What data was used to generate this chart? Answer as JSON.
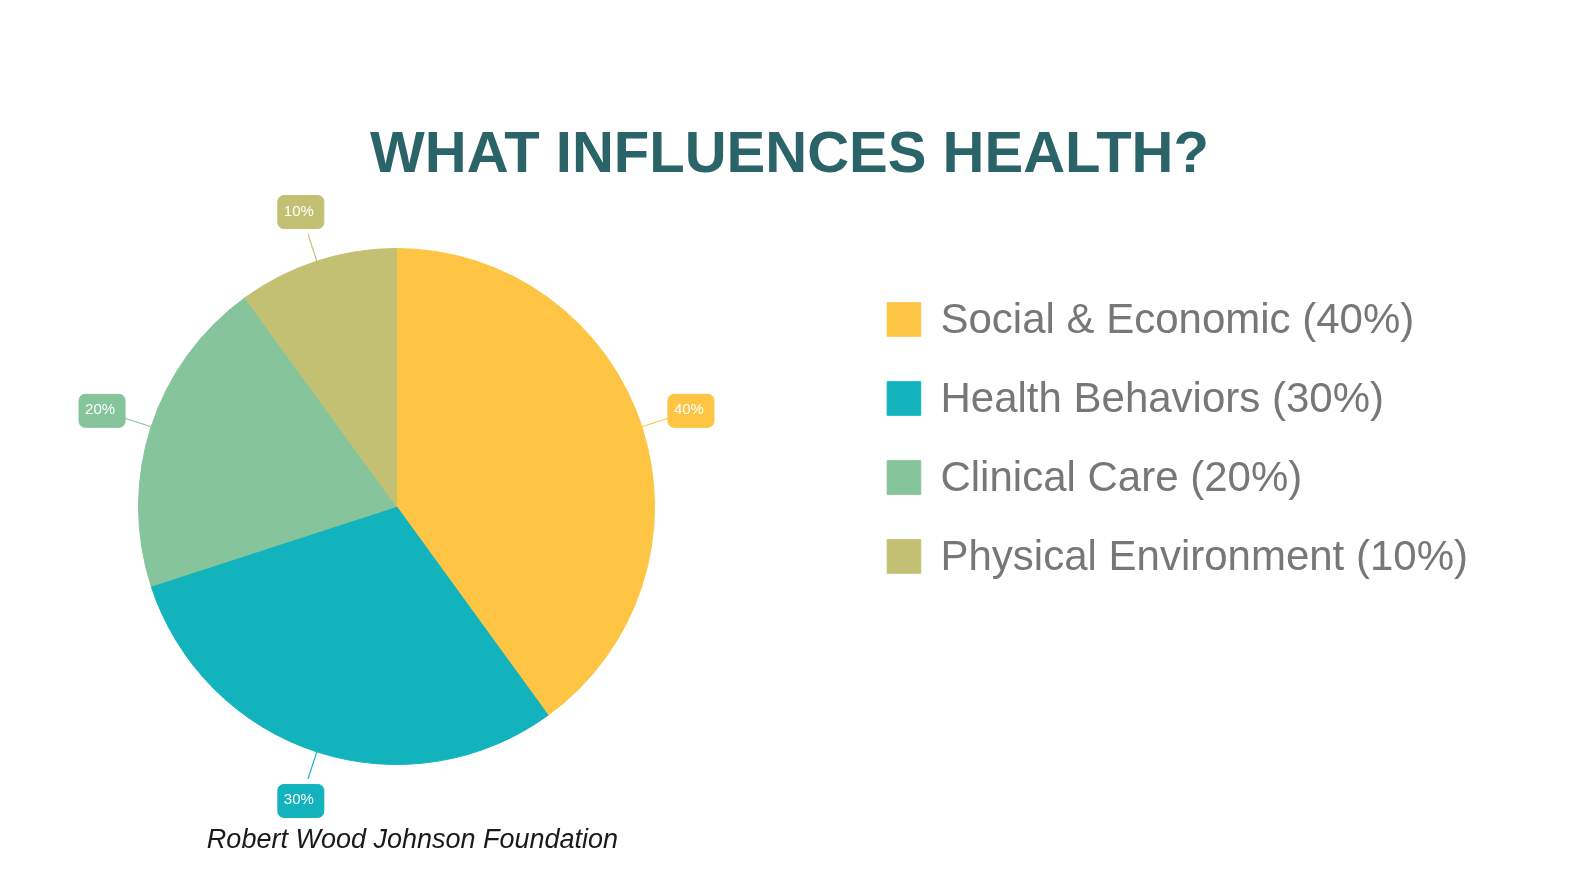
{
  "chart_data": {
    "type": "pie",
    "title": "WHAT INFLUENCES HEALTH?",
    "categories": [
      "Social & Economic (40%)",
      "Health Behaviors (30%)",
      "Clinical Care (20%)",
      "Physical Environment (10%)"
    ],
    "values": [
      40,
      30,
      20,
      10
    ],
    "colors": [
      "#fdc543",
      "#12b3bd",
      "#86c49b",
      "#c2c173"
    ],
    "value_labels": [
      "40%",
      "30%",
      "20%",
      "10%"
    ],
    "legend": "right",
    "annotations": [
      "Robert Wood Johnson Foundation"
    ]
  }
}
